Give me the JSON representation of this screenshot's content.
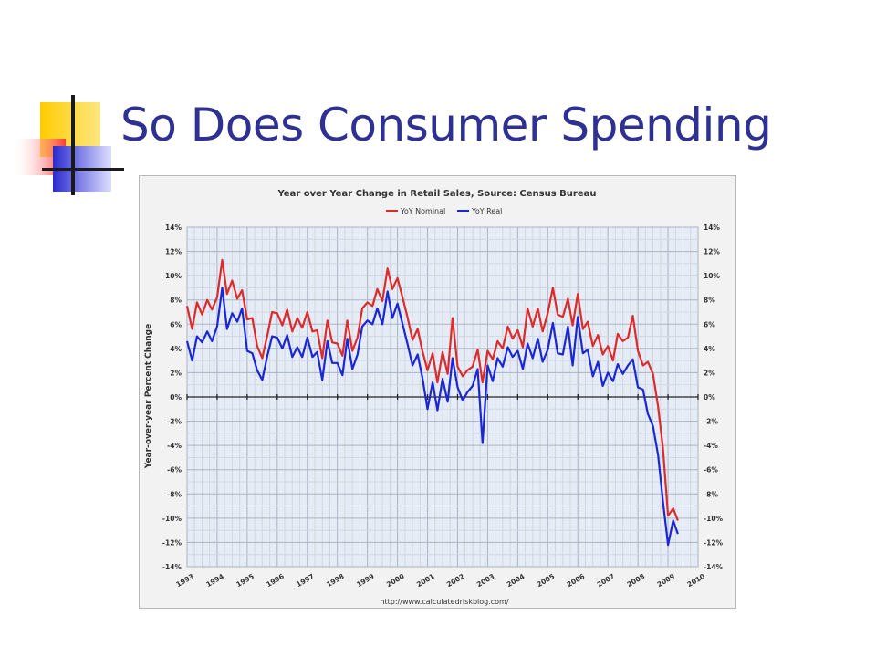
{
  "slide": {
    "title": "So Does Consumer Spending"
  },
  "chart_data": {
    "type": "line",
    "title": "Year over Year Change in Retail Sales, Source: Census Bureau",
    "ylabel": "Year-over-year Percent Change",
    "xlabel": "",
    "source": "http://www.calculatedriskblog.com/",
    "xlim": [
      1993,
      2010
    ],
    "ylim": [
      -14,
      14
    ],
    "x_ticks": [
      "1993",
      "1994",
      "1995",
      "1996",
      "1997",
      "1998",
      "1999",
      "2000",
      "2001",
      "2002",
      "2003",
      "2004",
      "2005",
      "2006",
      "2007",
      "2008",
      "2009",
      "2010"
    ],
    "y_ticks": [
      "14%",
      "12%",
      "10%",
      "8%",
      "6%",
      "4%",
      "2%",
      "0%",
      "-2%",
      "-4%",
      "-6%",
      "-8%",
      "-10%",
      "-12%",
      "-14%"
    ],
    "legend_position": "top-center",
    "grid": true,
    "series": [
      {
        "name": "YoY Nominal",
        "color": "#dd2b2b",
        "x": [
          1993,
          1993.17,
          1993.33,
          1993.5,
          1993.67,
          1993.83,
          1994,
          1994.17,
          1994.33,
          1994.5,
          1994.67,
          1994.83,
          1995,
          1995.17,
          1995.33,
          1995.5,
          1995.67,
          1995.83,
          1996,
          1996.17,
          1996.33,
          1996.5,
          1996.67,
          1996.83,
          1997,
          1997.17,
          1997.33,
          1997.5,
          1997.67,
          1997.83,
          1998,
          1998.17,
          1998.33,
          1998.5,
          1998.67,
          1998.83,
          1999,
          1999.17,
          1999.33,
          1999.5,
          1999.67,
          1999.83,
          2000,
          2000.17,
          2000.33,
          2000.5,
          2000.67,
          2000.83,
          2001,
          2001.17,
          2001.33,
          2001.5,
          2001.67,
          2001.83,
          2002,
          2002.17,
          2002.33,
          2002.5,
          2002.67,
          2002.83,
          2003,
          2003.17,
          2003.33,
          2003.5,
          2003.67,
          2003.83,
          2004,
          2004.17,
          2004.33,
          2004.5,
          2004.67,
          2004.83,
          2005,
          2005.17,
          2005.33,
          2005.5,
          2005.67,
          2005.83,
          2006,
          2006.17,
          2006.33,
          2006.5,
          2006.67,
          2006.83,
          2007,
          2007.17,
          2007.33,
          2007.5,
          2007.67,
          2007.83,
          2008,
          2008.17,
          2008.33,
          2008.5,
          2008.67,
          2008.83,
          2009,
          2009.17,
          2009.33
        ],
        "values": [
          7.5,
          5.6,
          7.8,
          6.8,
          8.0,
          7.2,
          8.2,
          11.3,
          8.5,
          9.6,
          8.1,
          8.8,
          6.4,
          6.5,
          4.2,
          3.2,
          5.1,
          7.0,
          6.9,
          5.9,
          7.2,
          5.4,
          6.5,
          5.7,
          7.0,
          5.4,
          5.5,
          3.2,
          6.3,
          4.5,
          4.4,
          3.4,
          6.3,
          3.8,
          4.9,
          7.3,
          7.8,
          7.5,
          8.9,
          7.9,
          10.6,
          8.9,
          9.8,
          8.2,
          6.6,
          4.7,
          5.6,
          3.8,
          2.2,
          3.6,
          1.2,
          3.7,
          1.9,
          6.5,
          2.5,
          1.7,
          2.2,
          2.5,
          3.9,
          1.2,
          3.8,
          3.1,
          4.6,
          4.0,
          5.8,
          4.8,
          5.5,
          4.1,
          7.3,
          5.8,
          7.3,
          5.4,
          6.9,
          9.0,
          6.8,
          6.6,
          8.1,
          5.9,
          8.5,
          5.6,
          6.2,
          4.2,
          5.1,
          3.5,
          4.2,
          3.0,
          5.2,
          4.6,
          4.9,
          6.7,
          3.8,
          2.6,
          2.9,
          1.9,
          -0.8,
          -4.2,
          -9.8,
          -9.2,
          -10.2
        ]
      },
      {
        "name": "YoY Real",
        "color": "#1b27d4",
        "x": [
          1993,
          1993.17,
          1993.33,
          1993.5,
          1993.67,
          1993.83,
          1994,
          1994.17,
          1994.33,
          1994.5,
          1994.67,
          1994.83,
          1995,
          1995.17,
          1995.33,
          1995.5,
          1995.67,
          1995.83,
          1996,
          1996.17,
          1996.33,
          1996.5,
          1996.67,
          1996.83,
          1997,
          1997.17,
          1997.33,
          1997.5,
          1997.67,
          1997.83,
          1998,
          1998.17,
          1998.33,
          1998.5,
          1998.67,
          1998.83,
          1999,
          1999.17,
          1999.33,
          1999.5,
          1999.67,
          1999.83,
          2000,
          2000.17,
          2000.33,
          2000.5,
          2000.67,
          2000.83,
          2001,
          2001.17,
          2001.33,
          2001.5,
          2001.67,
          2001.83,
          2002,
          2002.17,
          2002.33,
          2002.5,
          2002.67,
          2002.83,
          2003,
          2003.17,
          2003.33,
          2003.5,
          2003.67,
          2003.83,
          2004,
          2004.17,
          2004.33,
          2004.5,
          2004.67,
          2004.83,
          2005,
          2005.17,
          2005.33,
          2005.5,
          2005.67,
          2005.83,
          2006,
          2006.17,
          2006.33,
          2006.5,
          2006.67,
          2006.83,
          2007,
          2007.17,
          2007.33,
          2007.5,
          2007.67,
          2007.83,
          2008,
          2008.17,
          2008.33,
          2008.5,
          2008.67,
          2008.83,
          2009,
          2009.17,
          2009.33
        ],
        "values": [
          4.6,
          3.0,
          5.0,
          4.5,
          5.4,
          4.6,
          5.8,
          9.0,
          5.6,
          6.9,
          6.2,
          7.3,
          3.8,
          3.6,
          2.2,
          1.4,
          3.4,
          5.0,
          4.9,
          4.0,
          5.1,
          3.3,
          4.1,
          3.3,
          4.9,
          3.3,
          3.7,
          1.4,
          4.6,
          2.8,
          2.8,
          1.8,
          4.8,
          2.3,
          3.5,
          5.8,
          6.3,
          6.0,
          7.3,
          6.0,
          8.7,
          6.5,
          7.7,
          6.0,
          4.4,
          2.6,
          3.5,
          1.6,
          -1.0,
          1.2,
          -1.1,
          1.5,
          -0.4,
          3.2,
          0.8,
          -0.3,
          0.4,
          0.9,
          2.3,
          -3.8,
          2.6,
          1.3,
          3.2,
          2.5,
          4.1,
          3.3,
          3.8,
          2.3,
          4.4,
          3.2,
          4.8,
          2.9,
          3.9,
          6.1,
          3.6,
          3.5,
          5.8,
          2.6,
          6.6,
          3.6,
          3.9,
          1.7,
          2.9,
          0.9,
          2.0,
          1.3,
          2.7,
          1.9,
          2.6,
          3.1,
          0.8,
          0.6,
          -1.4,
          -2.4,
          -4.8,
          -8.6,
          -12.2,
          -10.2,
          -11.3
        ]
      }
    ]
  }
}
